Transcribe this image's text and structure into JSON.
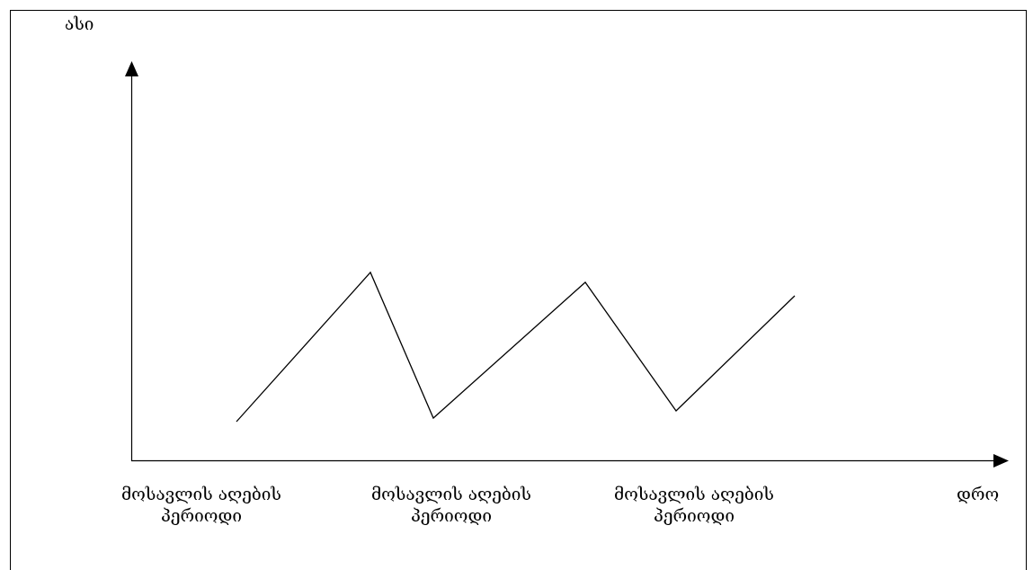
{
  "diagram": {
    "y_axis_label": "ასი",
    "x_axis_label": "დრო",
    "period_labels": [
      {
        "line1": "მოსავლის აღების",
        "line2": "პერიოდი"
      },
      {
        "line1": "მოსავლის აღების",
        "line2": "პერიოდი"
      },
      {
        "line1": "მოსავლის აღების",
        "line2": "პერიოდი"
      }
    ],
    "line_color": "#000000"
  }
}
